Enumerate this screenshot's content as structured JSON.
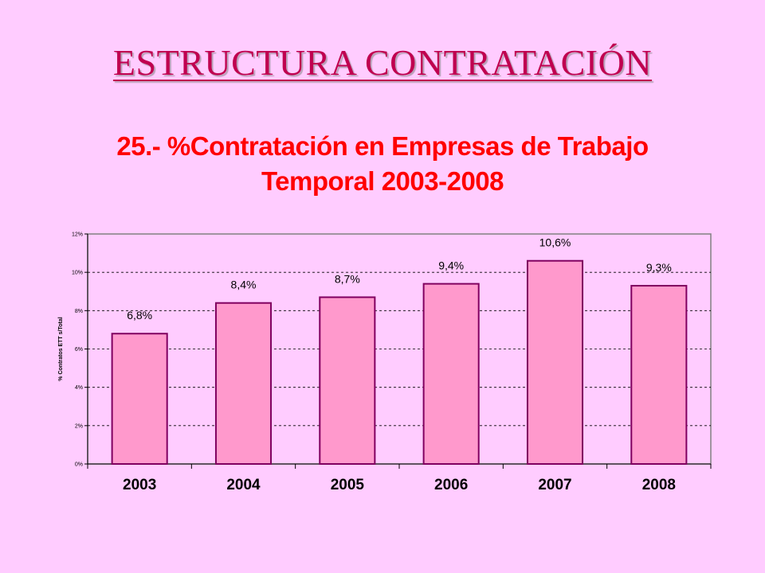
{
  "slide": {
    "title": "ESTRUCTURA CONTRATACIÓN"
  },
  "chart_data": {
    "type": "bar",
    "title_line1": "25.- %Contratación en Empresas de Trabajo",
    "title_line2": "Temporal 2003-2008",
    "ylabel": "% Contratos ETT s/Total",
    "categories": [
      "2003",
      "2004",
      "2005",
      "2006",
      "2007",
      "2008"
    ],
    "values": [
      6.8,
      8.4,
      8.7,
      9.4,
      10.6,
      9.3
    ],
    "data_labels": [
      "6,8%",
      "8,4%",
      "8,7%",
      "9,4%",
      "10,6%",
      "9,3%"
    ],
    "ylim": [
      0,
      12
    ],
    "yticks": [
      0,
      2,
      4,
      6,
      8,
      10,
      12
    ],
    "ytick_labels": [
      "0%",
      "2%",
      "4%",
      "6%",
      "8%",
      "10%",
      "12%"
    ],
    "grid": true,
    "colors": {
      "bar_fill": "#ff99cc",
      "bar_stroke": "#800060",
      "plot_background": "#ffccff"
    }
  }
}
